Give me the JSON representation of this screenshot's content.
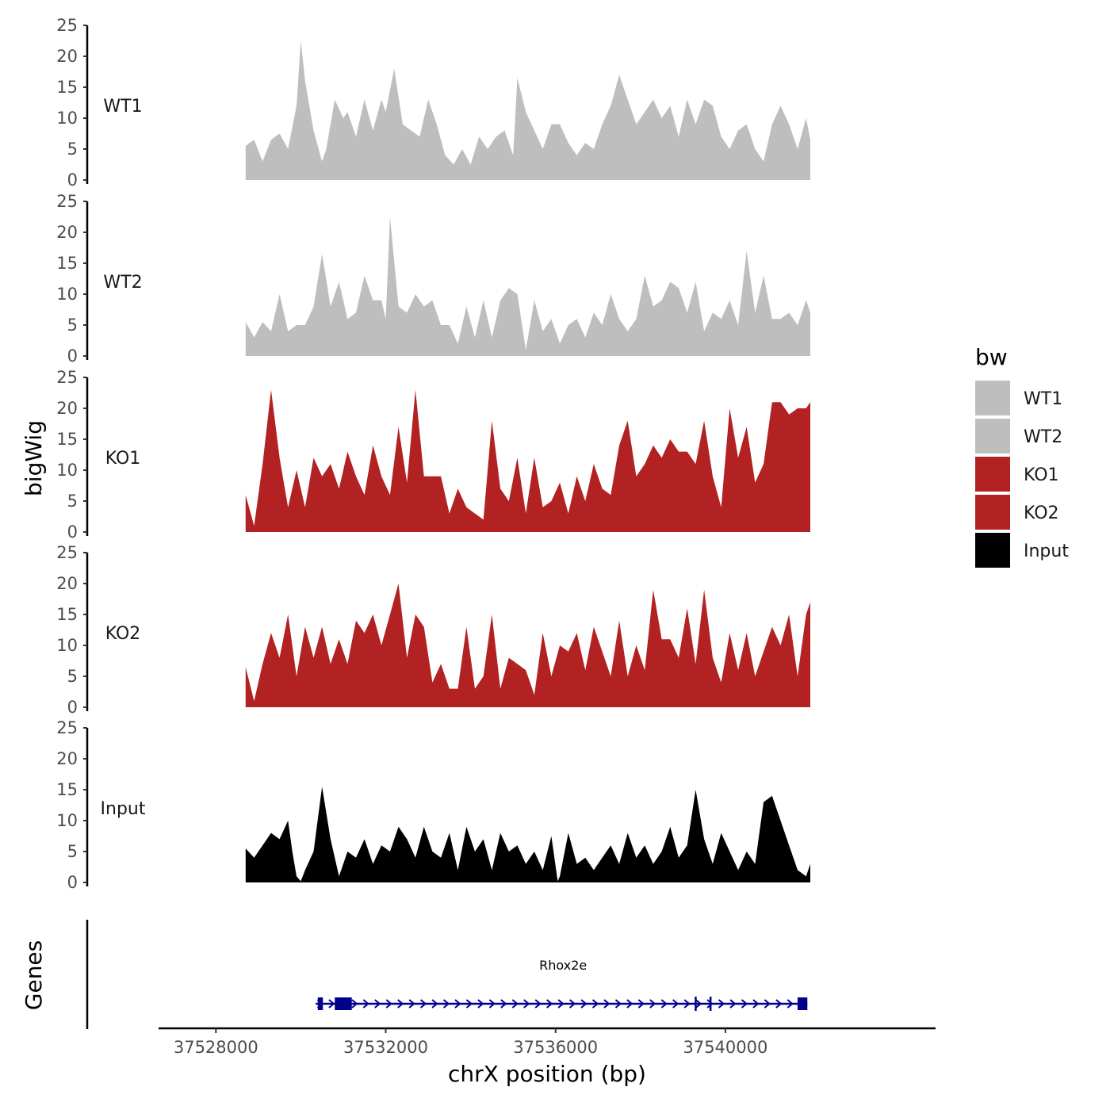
{
  "chart_data": {
    "type": "area",
    "y_axis_title": "bigWig",
    "x_axis_title": "chrX position (bp)",
    "gene_panel_title": "Genes",
    "ylim": [
      0,
      25
    ],
    "y_ticks": [
      0,
      5,
      10,
      15,
      20,
      25
    ],
    "x_range": [
      37526650,
      37544950
    ],
    "x_ticks": [
      37528000,
      37532000,
      37536000,
      37540000
    ],
    "x_tick_labels": [
      "37528000",
      "37532000",
      "37536000",
      "37540000"
    ],
    "legend": {
      "title": "bw",
      "position": "right",
      "entries": [
        {
          "label": "WT1",
          "color": "#bebebe"
        },
        {
          "label": "WT2",
          "color": "#bebebe"
        },
        {
          "label": "KO1",
          "color": "#b22222"
        },
        {
          "label": "KO2",
          "color": "#b22222"
        },
        {
          "label": "Input",
          "color": "#000000"
        }
      ]
    },
    "tracks": [
      {
        "name": "WT1",
        "color": "#bebebe",
        "x": [
          37528700,
          37528900,
          37529100,
          37529300,
          37529500,
          37529700,
          37529900,
          37530000,
          37530100,
          37530300,
          37530500,
          37530600,
          37530800,
          37531000,
          37531100,
          37531300,
          37531500,
          37531700,
          37531900,
          37532000,
          37532200,
          37532400,
          37532600,
          37532800,
          37533000,
          37533200,
          37533400,
          37533600,
          37533800,
          37534000,
          37534200,
          37534400,
          37534600,
          37534800,
          37535000,
          37535100,
          37535300,
          37535500,
          37535700,
          37535900,
          37536100,
          37536300,
          37536500,
          37536700,
          37536900,
          37537100,
          37537300,
          37537500,
          37537700,
          37537900,
          37538100,
          37538300,
          37538500,
          37538700,
          37538900,
          37539100,
          37539300,
          37539500,
          37539700,
          37539900,
          37540100,
          37540300,
          37540500,
          37540700,
          37540900,
          37541100,
          37541300,
          37541500,
          37541700,
          37541900,
          37542000
        ],
        "values": [
          5.5,
          6.5,
          3,
          6.5,
          7.5,
          5,
          12,
          22.5,
          16,
          8,
          3,
          5,
          13,
          10,
          11,
          7,
          13,
          8,
          13,
          11,
          18,
          9,
          8,
          7,
          13,
          9,
          4,
          2.5,
          5,
          2.5,
          7,
          5,
          7,
          8,
          4,
          16.5,
          11,
          8,
          5,
          9,
          9,
          6,
          4,
          6,
          5,
          9,
          12,
          17,
          13,
          9,
          11,
          13,
          10,
          12,
          7,
          13,
          9,
          13,
          12,
          7,
          5,
          8,
          9,
          5,
          3,
          9,
          12,
          9,
          5,
          10,
          6.5
        ]
      },
      {
        "name": "WT2",
        "color": "#bebebe",
        "x": [
          37528700,
          37528900,
          37529100,
          37529300,
          37529500,
          37529700,
          37529900,
          37530100,
          37530300,
          37530500,
          37530700,
          37530900,
          37531100,
          37531300,
          37531500,
          37531700,
          37531900,
          37532000,
          37532100,
          37532300,
          37532500,
          37532700,
          37532900,
          37533100,
          37533300,
          37533500,
          37533700,
          37533900,
          37534100,
          37534300,
          37534500,
          37534700,
          37534900,
          37535100,
          37535300,
          37535500,
          37535700,
          37535900,
          37536100,
          37536300,
          37536500,
          37536700,
          37536900,
          37537100,
          37537300,
          37537500,
          37537700,
          37537900,
          37538100,
          37538300,
          37538500,
          37538700,
          37538900,
          37539100,
          37539300,
          37539500,
          37539700,
          37539900,
          37540100,
          37540300,
          37540500,
          37540700,
          37540900,
          37541100,
          37541300,
          37541500,
          37541700,
          37541900,
          37542000
        ],
        "values": [
          5.5,
          3,
          5.5,
          4,
          10,
          4,
          5,
          5,
          8,
          16.5,
          8,
          12,
          6,
          7,
          13,
          9,
          9,
          6,
          22.5,
          8,
          7,
          10,
          8,
          9,
          5,
          5,
          2,
          8,
          3,
          9,
          3,
          9,
          11,
          10,
          1,
          9,
          4,
          6,
          2,
          5,
          6,
          3,
          7,
          5,
          10,
          6,
          4,
          6,
          13,
          8,
          9,
          12,
          11,
          7,
          12,
          4,
          7,
          6,
          9,
          5,
          17,
          7,
          13,
          6,
          6,
          7,
          5,
          9,
          7
        ]
      },
      {
        "name": "KO1",
        "color": "#b22222",
        "x": [
          37528700,
          37528900,
          37529100,
          37529300,
          37529500,
          37529700,
          37529900,
          37530100,
          37530300,
          37530500,
          37530700,
          37530900,
          37531100,
          37531300,
          37531500,
          37531700,
          37531900,
          37532100,
          37532300,
          37532500,
          37532700,
          37532900,
          37533100,
          37533300,
          37533500,
          37533700,
          37533900,
          37534100,
          37534300,
          37534500,
          37534700,
          37534900,
          37535100,
          37535300,
          37535500,
          37535700,
          37535900,
          37536100,
          37536300,
          37536500,
          37536700,
          37536900,
          37537100,
          37537300,
          37537500,
          37537700,
          37537900,
          37538100,
          37538300,
          37538500,
          37538700,
          37538900,
          37539100,
          37539300,
          37539500,
          37539700,
          37539900,
          37540100,
          37540300,
          37540500,
          37540700,
          37540900,
          37541100,
          37541300,
          37541500,
          37541700,
          37541900,
          37542000
        ],
        "values": [
          6,
          1,
          11,
          23,
          12,
          4,
          10,
          4,
          12,
          9,
          11,
          7,
          13,
          9,
          6,
          14,
          9,
          6,
          17,
          8,
          23,
          9,
          9,
          9,
          3,
          7,
          4,
          3,
          2,
          18,
          7,
          5,
          12,
          3,
          12,
          4,
          5,
          8,
          3,
          9,
          5,
          11,
          7,
          6,
          14,
          18,
          9,
          11,
          14,
          12,
          15,
          13,
          13,
          11,
          18,
          9,
          4,
          20,
          12,
          17,
          8,
          11,
          21,
          21,
          19,
          20,
          20,
          21
        ]
      },
      {
        "name": "KO2",
        "color": "#b22222",
        "x": [
          37528700,
          37528900,
          37529100,
          37529300,
          37529500,
          37529700,
          37529900,
          37530100,
          37530300,
          37530500,
          37530700,
          37530900,
          37531100,
          37531300,
          37531500,
          37531700,
          37531900,
          37532100,
          37532300,
          37532500,
          37532700,
          37532900,
          37533100,
          37533300,
          37533500,
          37533700,
          37533900,
          37534100,
          37534300,
          37534500,
          37534700,
          37534900,
          37535100,
          37535300,
          37535500,
          37535700,
          37535900,
          37536100,
          37536300,
          37536500,
          37536700,
          37536900,
          37537100,
          37537300,
          37537500,
          37537700,
          37537900,
          37538100,
          37538300,
          37538500,
          37538700,
          37538900,
          37539100,
          37539300,
          37539500,
          37539700,
          37539900,
          37540100,
          37540300,
          37540500,
          37540700,
          37540900,
          37541100,
          37541300,
          37541500,
          37541700,
          37541900,
          37542000
        ],
        "values": [
          6.5,
          1,
          7,
          12,
          8,
          15,
          5,
          13,
          8,
          13,
          7,
          11,
          7,
          14,
          12,
          15,
          10,
          15,
          20,
          8,
          15,
          13,
          4,
          7,
          3,
          3,
          13,
          3,
          5,
          15,
          3,
          8,
          7,
          6,
          2,
          12,
          5,
          10,
          9,
          12,
          6,
          13,
          9,
          5,
          14,
          5,
          10,
          6,
          19,
          11,
          11,
          8,
          16,
          7,
          19,
          8,
          4,
          12,
          6,
          12,
          5,
          9,
          13,
          10,
          15,
          5,
          15,
          17
        ]
      },
      {
        "name": "Input",
        "color": "#000000",
        "x": [
          37528700,
          37528900,
          37529100,
          37529300,
          37529500,
          37529700,
          37529800,
          37529900,
          37530000,
          37530100,
          37530300,
          37530500,
          37530700,
          37530900,
          37531100,
          37531300,
          37531500,
          37531700,
          37531900,
          37532100,
          37532300,
          37532500,
          37532700,
          37532900,
          37533100,
          37533300,
          37533500,
          37533700,
          37533900,
          37534100,
          37534300,
          37534500,
          37534700,
          37534900,
          37535100,
          37535300,
          37535500,
          37535700,
          37535900,
          37536050,
          37536100,
          37536300,
          37536500,
          37536700,
          37536900,
          37537100,
          37537300,
          37537500,
          37537700,
          37537900,
          37538100,
          37538300,
          37538500,
          37538700,
          37538900,
          37539100,
          37539300,
          37539500,
          37539700,
          37539900,
          37540100,
          37540300,
          37540500,
          37540700,
          37540900,
          37541100,
          37541300,
          37541500,
          37541700,
          37541900,
          37542000
        ],
        "values": [
          5.5,
          4,
          6,
          8,
          7,
          10,
          5,
          1,
          0.2,
          2,
          5,
          15.5,
          7,
          1,
          5,
          4,
          7,
          3,
          6,
          5,
          9,
          7,
          4,
          9,
          5,
          4,
          8,
          2,
          9,
          5,
          7,
          2,
          8,
          5,
          6,
          3,
          5,
          2,
          7.5,
          0.2,
          1,
          8,
          3,
          4,
          2,
          4,
          6,
          3,
          8,
          4,
          6,
          3,
          5,
          9,
          4,
          6,
          15,
          7,
          3,
          8,
          5,
          2,
          5,
          3,
          13,
          14,
          10,
          6,
          2,
          1,
          3
        ]
      }
    ],
    "gene": {
      "name": "Rhox2e",
      "color": "#00008b",
      "start": 37530350,
      "end": 37541930,
      "exons": [
        [
          37530400,
          37530520
        ],
        [
          37530800,
          37531200
        ],
        [
          37541700,
          37541930
        ]
      ],
      "marks": [
        37539300,
        37539650
      ]
    }
  }
}
